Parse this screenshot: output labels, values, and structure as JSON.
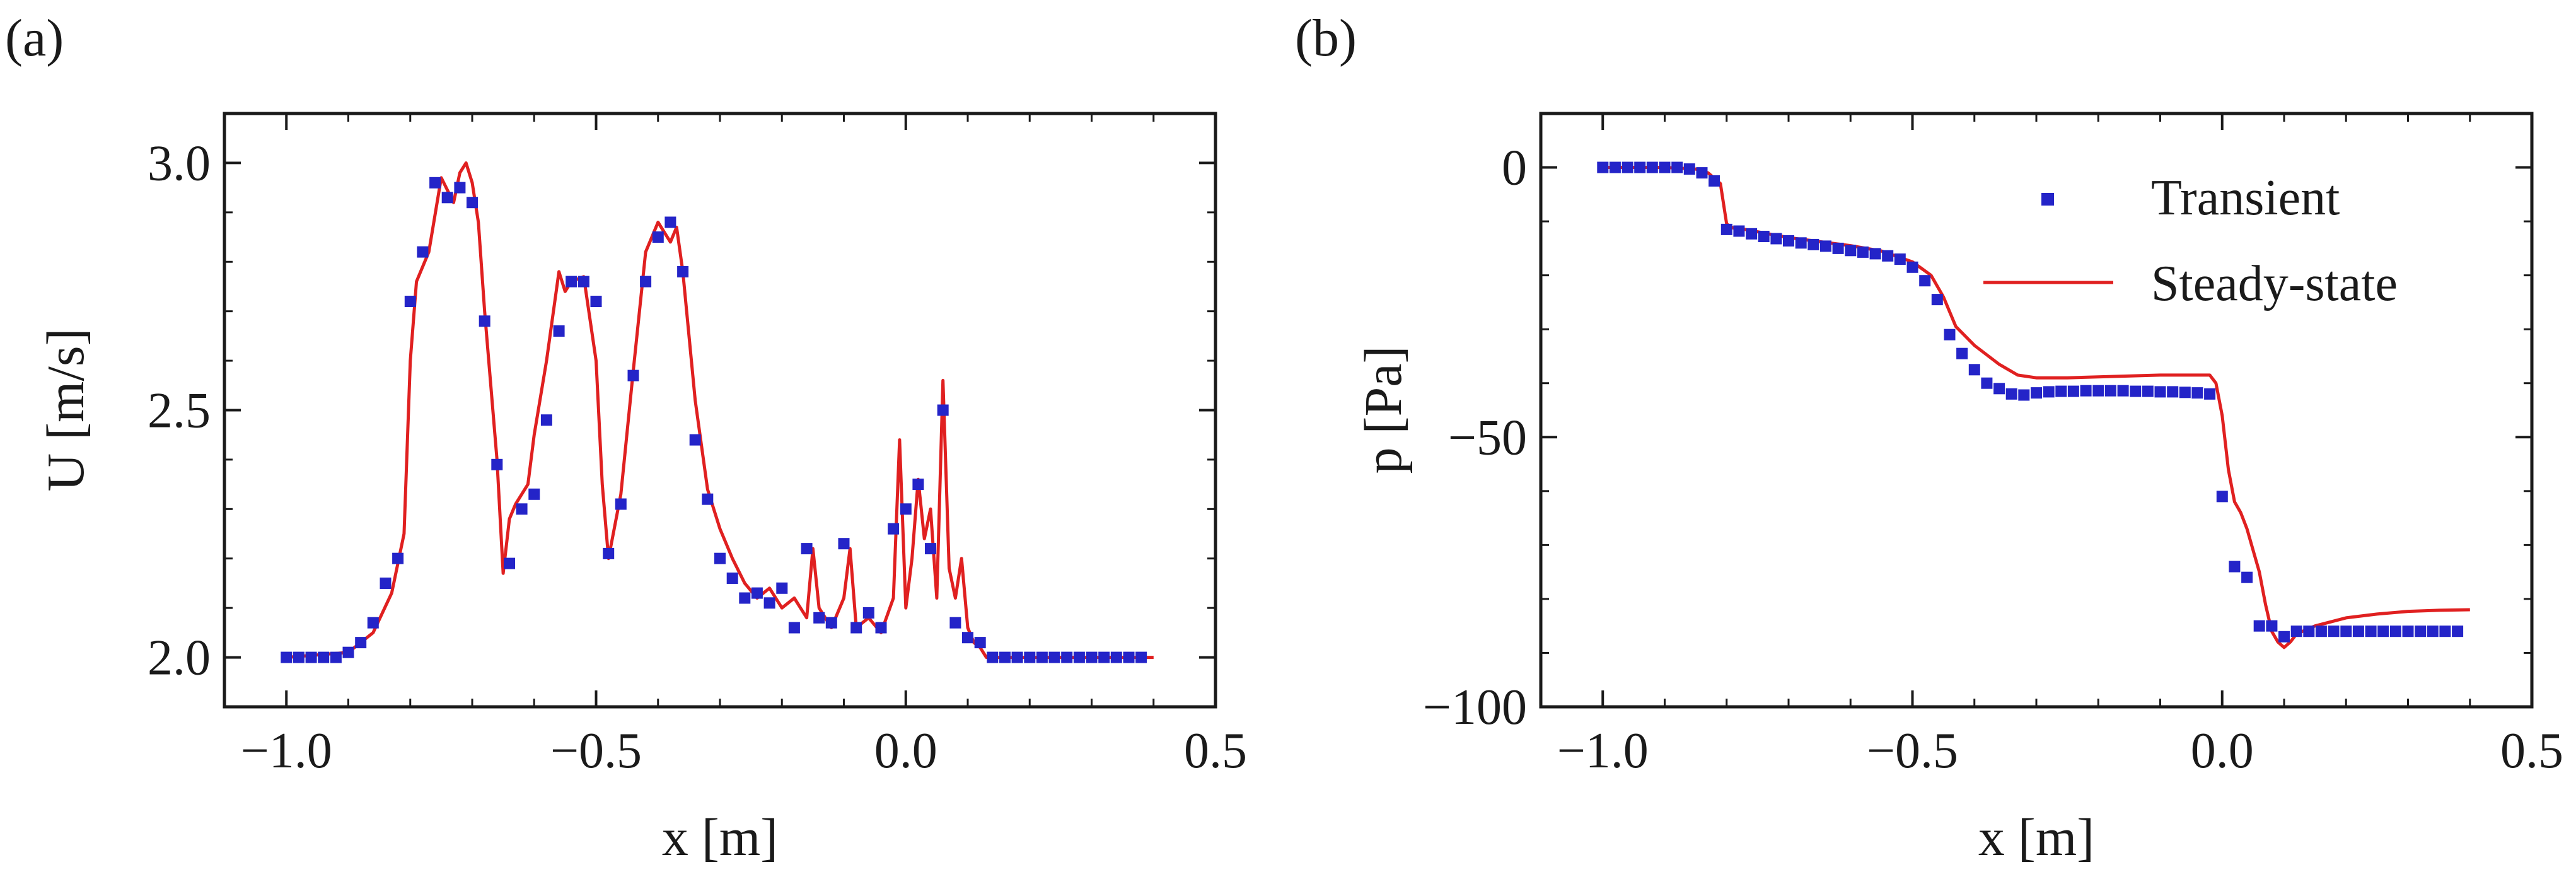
{
  "panels": [
    {
      "label": "(a)"
    },
    {
      "label": "(b)"
    }
  ],
  "chart_data": [
    {
      "type": "line",
      "panel": "(a)",
      "xlabel": "x [m]",
      "ylabel": "U [m/s]",
      "xlim": [
        -1.1,
        0.5
      ],
      "ylim": [
        1.9,
        3.1
      ],
      "xticks": [
        -1.0,
        -0.5,
        0.0,
        0.5
      ],
      "xtick_labels": [
        "−1.0",
        "−0.5",
        "0.0",
        "0.5"
      ],
      "yticks": [
        2.0,
        2.5,
        3.0
      ],
      "ytick_labels": [
        "2.0",
        "2.5",
        "3.0"
      ],
      "grid": false,
      "colors": {
        "transient": "#2424c8",
        "steady": "#e02020"
      },
      "series": [
        {
          "style": "markers",
          "x": [
            -1.0,
            -0.98,
            -0.96,
            -0.94,
            -0.92,
            -0.9,
            -0.88,
            -0.86,
            -0.84,
            -0.82,
            -0.8,
            -0.78,
            -0.76,
            -0.74,
            -0.72,
            -0.7,
            -0.68,
            -0.66,
            -0.64,
            -0.62,
            -0.6,
            -0.58,
            -0.56,
            -0.54,
            -0.52,
            -0.5,
            -0.48,
            -0.46,
            -0.44,
            -0.42,
            -0.4,
            -0.38,
            -0.36,
            -0.34,
            -0.32,
            -0.3,
            -0.28,
            -0.26,
            -0.24,
            -0.22,
            -0.2,
            -0.18,
            -0.16,
            -0.14,
            -0.12,
            -0.1,
            -0.08,
            -0.06,
            -0.04,
            -0.02,
            0.0,
            0.02,
            0.04,
            0.06,
            0.08,
            0.1,
            0.12,
            0.14,
            0.16,
            0.18,
            0.2,
            0.22,
            0.24,
            0.26,
            0.28,
            0.3,
            0.32,
            0.34,
            0.36,
            0.38
          ],
          "y": [
            2.0,
            2.0,
            2.0,
            2.0,
            2.0,
            2.01,
            2.03,
            2.07,
            2.15,
            2.2,
            2.72,
            2.82,
            2.96,
            2.93,
            2.95,
            2.92,
            2.68,
            2.39,
            2.19,
            2.3,
            2.33,
            2.48,
            2.66,
            2.76,
            2.76,
            2.72,
            2.21,
            2.31,
            2.57,
            2.76,
            2.85,
            2.88,
            2.78,
            2.44,
            2.32,
            2.2,
            2.16,
            2.12,
            2.13,
            2.11,
            2.14,
            2.06,
            2.22,
            2.08,
            2.07,
            2.23,
            2.06,
            2.09,
            2.06,
            2.26,
            2.3,
            2.35,
            2.22,
            2.5,
            2.07,
            2.04,
            2.03,
            2.0,
            2.0,
            2.0,
            2.0,
            2.0,
            2.0,
            2.0,
            2.0,
            2.0,
            2.0,
            2.0,
            2.0,
            2.0
          ]
        },
        {
          "style": "line",
          "x": [
            -1.0,
            -0.9,
            -0.86,
            -0.83,
            -0.81,
            -0.8,
            -0.79,
            -0.77,
            -0.75,
            -0.73,
            -0.72,
            -0.71,
            -0.7,
            -0.69,
            -0.68,
            -0.66,
            -0.65,
            -0.64,
            -0.63,
            -0.61,
            -0.6,
            -0.58,
            -0.56,
            -0.55,
            -0.54,
            -0.52,
            -0.5,
            -0.49,
            -0.48,
            -0.46,
            -0.44,
            -0.42,
            -0.4,
            -0.38,
            -0.37,
            -0.36,
            -0.34,
            -0.32,
            -0.3,
            -0.28,
            -0.26,
            -0.24,
            -0.22,
            -0.2,
            -0.18,
            -0.16,
            -0.15,
            -0.14,
            -0.12,
            -0.1,
            -0.09,
            -0.08,
            -0.06,
            -0.04,
            -0.02,
            -0.01,
            0.0,
            0.01,
            0.02,
            0.03,
            0.04,
            0.05,
            0.06,
            0.07,
            0.08,
            0.09,
            0.1,
            0.11,
            0.12,
            0.13,
            0.2,
            0.3,
            0.4
          ],
          "y": [
            2.0,
            2.01,
            2.05,
            2.13,
            2.25,
            2.6,
            2.76,
            2.82,
            2.97,
            2.92,
            2.98,
            3.0,
            2.96,
            2.88,
            2.7,
            2.4,
            2.17,
            2.28,
            2.31,
            2.35,
            2.45,
            2.6,
            2.78,
            2.74,
            2.76,
            2.77,
            2.6,
            2.35,
            2.2,
            2.33,
            2.58,
            2.82,
            2.88,
            2.84,
            2.87,
            2.78,
            2.52,
            2.34,
            2.26,
            2.2,
            2.15,
            2.12,
            2.14,
            2.1,
            2.12,
            2.08,
            2.22,
            2.1,
            2.06,
            2.12,
            2.22,
            2.06,
            2.08,
            2.05,
            2.12,
            2.44,
            2.1,
            2.2,
            2.36,
            2.24,
            2.3,
            2.12,
            2.56,
            2.18,
            2.12,
            2.2,
            2.06,
            2.03,
            2.02,
            2.0,
            2.0,
            2.0,
            2.0
          ]
        }
      ]
    },
    {
      "type": "line",
      "panel": "(b)",
      "xlabel": "x [m]",
      "ylabel": "p [Pa]",
      "xlim": [
        -1.1,
        0.5
      ],
      "ylim": [
        -100,
        10
      ],
      "xticks": [
        -1.0,
        -0.5,
        0.0,
        0.5
      ],
      "xtick_labels": [
        "−1.0",
        "−0.5",
        "0.0",
        "0.5"
      ],
      "yticks": [
        -100,
        -50,
        0
      ],
      "ytick_labels": [
        "−100",
        "−50",
        "0"
      ],
      "grid": false,
      "legend": "top-right",
      "colors": {
        "transient": "#2424c8",
        "steady": "#e02020"
      },
      "series": [
        {
          "name": "Transient",
          "style": "markers",
          "x": [
            -1.0,
            -0.98,
            -0.96,
            -0.94,
            -0.92,
            -0.9,
            -0.88,
            -0.86,
            -0.84,
            -0.82,
            -0.8,
            -0.78,
            -0.76,
            -0.74,
            -0.72,
            -0.7,
            -0.68,
            -0.66,
            -0.64,
            -0.62,
            -0.6,
            -0.58,
            -0.56,
            -0.54,
            -0.52,
            -0.5,
            -0.48,
            -0.46,
            -0.44,
            -0.42,
            -0.4,
            -0.38,
            -0.36,
            -0.34,
            -0.32,
            -0.3,
            -0.28,
            -0.26,
            -0.24,
            -0.22,
            -0.2,
            -0.18,
            -0.16,
            -0.14,
            -0.12,
            -0.1,
            -0.08,
            -0.06,
            -0.04,
            -0.02,
            0.0,
            0.02,
            0.04,
            0.06,
            0.08,
            0.1,
            0.12,
            0.14,
            0.16,
            0.18,
            0.2,
            0.22,
            0.24,
            0.26,
            0.28,
            0.3,
            0.32,
            0.34,
            0.36,
            0.38
          ],
          "y": [
            0,
            0,
            0,
            0,
            0,
            0,
            0,
            -0.3,
            -1.0,
            -2.5,
            -11.5,
            -11.8,
            -12.3,
            -12.8,
            -13.2,
            -13.6,
            -14.0,
            -14.3,
            -14.6,
            -15.0,
            -15.4,
            -15.7,
            -16.0,
            -16.4,
            -17.0,
            -18.5,
            -21.0,
            -24.5,
            -31.0,
            -34.5,
            -37.5,
            -40.0,
            -41.0,
            -42.0,
            -42.2,
            -41.8,
            -41.6,
            -41.5,
            -41.5,
            -41.4,
            -41.4,
            -41.4,
            -41.4,
            -41.5,
            -41.5,
            -41.6,
            -41.6,
            -41.7,
            -41.8,
            -42.0,
            -61.0,
            -74.0,
            -76.0,
            -85.0,
            -85.0,
            -87.0,
            -86.0,
            -86.0,
            -86.0,
            -86.0,
            -86.0,
            -86.0,
            -86.0,
            -86.0,
            -86.0,
            -86.0,
            -86.0,
            -86.0,
            -86.0,
            -86.0
          ]
        },
        {
          "name": "Steady-state",
          "style": "line",
          "x": [
            -1.0,
            -0.9,
            -0.85,
            -0.83,
            -0.81,
            -0.8,
            -0.79,
            -0.77,
            -0.7,
            -0.6,
            -0.55,
            -0.5,
            -0.47,
            -0.45,
            -0.43,
            -0.4,
            -0.36,
            -0.33,
            -0.3,
            -0.25,
            -0.1,
            -0.02,
            -0.01,
            0.0,
            0.01,
            0.02,
            0.03,
            0.04,
            0.05,
            0.06,
            0.07,
            0.08,
            0.09,
            0.1,
            0.11,
            0.12,
            0.15,
            0.2,
            0.25,
            0.3,
            0.35,
            0.4
          ],
          "y": [
            0,
            0,
            -0.3,
            -1.0,
            -3.0,
            -10.5,
            -11.2,
            -11.5,
            -13.0,
            -14.5,
            -15.5,
            -17.5,
            -20.0,
            -24.0,
            -29.5,
            -33.0,
            -36.5,
            -38.5,
            -39.0,
            -39.0,
            -38.5,
            -38.5,
            -40.0,
            -46.0,
            -56.0,
            -62.0,
            -64.0,
            -67.0,
            -71.0,
            -75.0,
            -81.0,
            -86.0,
            -88.0,
            -89.0,
            -88.0,
            -86.5,
            -85.0,
            -83.5,
            -82.8,
            -82.3,
            -82.1,
            -82.0
          ]
        }
      ]
    }
  ]
}
